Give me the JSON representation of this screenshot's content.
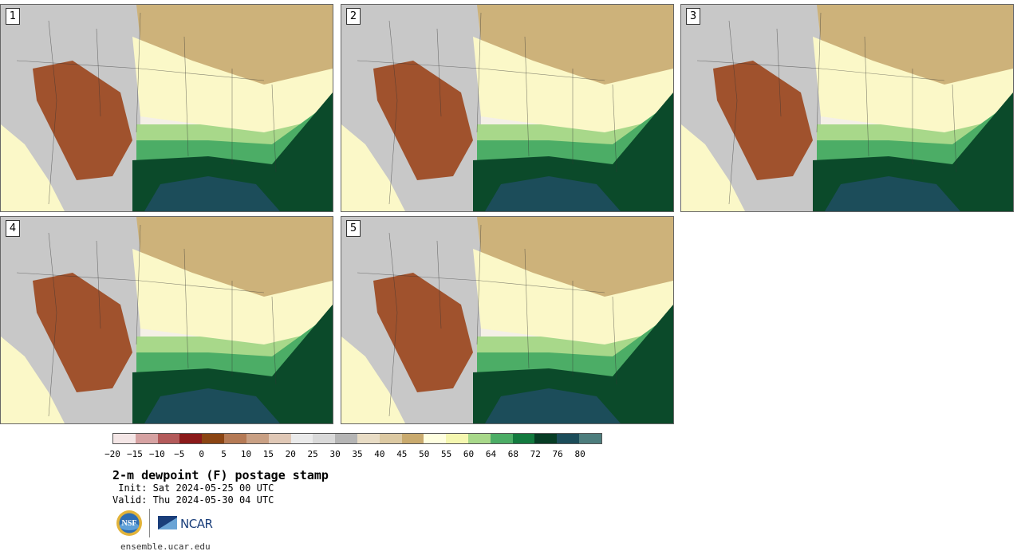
{
  "panels": [
    {
      "label": "1"
    },
    {
      "label": "2"
    },
    {
      "label": "3"
    },
    {
      "label": "4"
    },
    {
      "label": "5"
    }
  ],
  "colorbar": {
    "colors": [
      "#f4e6e6",
      "#d6a2a2",
      "#b35a5a",
      "#8b1a1a",
      "#8b4513",
      "#b57a55",
      "#c9a084",
      "#e0c8b6",
      "#eaeaea",
      "#d9d9d9",
      "#b5b5b5",
      "#e8dcc5",
      "#dcc9a2",
      "#c9aa6e",
      "#ffffe0",
      "#f5f7b0",
      "#a8d88a",
      "#4cad66",
      "#137a3f",
      "#073d25",
      "#1c4d5a",
      "#4d7d7d"
    ],
    "ticks": [
      "−20",
      "−15",
      "−10",
      "−5",
      "0",
      "5",
      "10",
      "15",
      "20",
      "25",
      "30",
      "35",
      "40",
      "45",
      "50",
      "55",
      "60",
      "64",
      "68",
      "72",
      "76",
      "80"
    ]
  },
  "title": "2-m dewpoint (F) postage stamp",
  "init": " Init: Sat 2024-05-25 00 UTC",
  "valid": "Valid: Thu 2024-05-30 04 UTC",
  "logos": {
    "nsf": "NSF",
    "ncar": "NCAR"
  },
  "site": "ensemble.ucar.edu",
  "colors": {
    "dry_desert": "#a0522d",
    "dry_grey": "#c8c8c8",
    "tan": "#cdb27a",
    "pale_yellow": "#fbf8c8",
    "light_green": "#a8d88a",
    "green": "#4cad66",
    "dark_green": "#0b4a2a",
    "gulf": "#1c4d5a"
  }
}
